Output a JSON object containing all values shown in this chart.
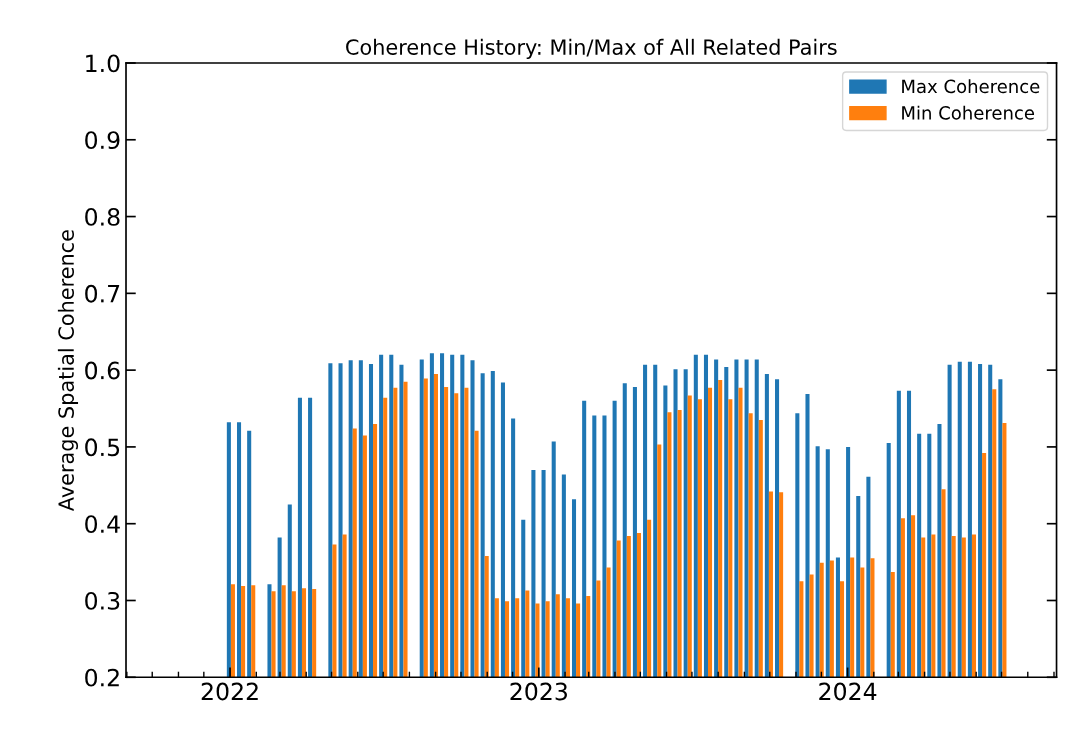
{
  "chart_data": {
    "type": "bar",
    "title": "Coherence History: Min/Max of All Related Pairs",
    "ylabel": "Average Spatial Coherence",
    "x": [
      "2022-01-02",
      "2022-01-14",
      "2022-01-26",
      "2022-02-19",
      "2022-03-03",
      "2022-03-15",
      "2022-03-27",
      "2022-04-08",
      "2022-05-02",
      "2022-05-14",
      "2022-05-26",
      "2022-06-07",
      "2022-06-19",
      "2022-07-01",
      "2022-07-13",
      "2022-07-25",
      "2022-08-18",
      "2022-08-30",
      "2022-09-11",
      "2022-09-23",
      "2022-10-05",
      "2022-10-17",
      "2022-10-29",
      "2022-11-10",
      "2022-11-22",
      "2022-12-04",
      "2022-12-16",
      "2022-12-28",
      "2023-01-09",
      "2023-01-21",
      "2023-02-02",
      "2023-02-14",
      "2023-02-26",
      "2023-03-10",
      "2023-03-22",
      "2023-04-03",
      "2023-04-15",
      "2023-04-27",
      "2023-05-09",
      "2023-05-21",
      "2023-06-02",
      "2023-06-14",
      "2023-06-26",
      "2023-07-08",
      "2023-07-20",
      "2023-08-01",
      "2023-08-13",
      "2023-08-25",
      "2023-09-06",
      "2023-09-18",
      "2023-09-30",
      "2023-10-12",
      "2023-11-05",
      "2023-11-17",
      "2023-11-29",
      "2023-12-11",
      "2023-12-23",
      "2024-01-04",
      "2024-01-16",
      "2024-01-28",
      "2024-02-21",
      "2024-03-04",
      "2024-03-16",
      "2024-03-28",
      "2024-04-09",
      "2024-04-21",
      "2024-05-03",
      "2024-05-15",
      "2024-05-27",
      "2024-06-08",
      "2024-06-20",
      "2024-07-02"
    ],
    "series": [
      {
        "name": "Max Coherence",
        "color": "#1f77b4",
        "values": [
          0.532,
          0.532,
          0.521,
          0.321,
          0.382,
          0.425,
          0.564,
          0.564,
          0.609,
          0.609,
          0.613,
          0.613,
          0.608,
          0.62,
          0.62,
          0.607,
          0.614,
          0.622,
          0.622,
          0.62,
          0.62,
          0.613,
          0.596,
          0.599,
          0.584,
          0.537,
          0.405,
          0.47,
          0.47,
          0.507,
          0.464,
          0.432,
          0.56,
          0.541,
          0.541,
          0.56,
          0.583,
          0.578,
          0.607,
          0.607,
          0.58,
          0.601,
          0.601,
          0.62,
          0.62,
          0.614,
          0.604,
          0.614,
          0.614,
          0.614,
          0.595,
          0.588,
          0.544,
          0.569,
          0.501,
          0.497,
          0.356,
          0.5,
          0.436,
          0.461,
          0.505,
          0.573,
          0.573,
          0.517,
          0.517,
          0.53,
          0.607,
          0.611,
          0.611,
          0.608,
          0.607,
          0.588
        ]
      },
      {
        "name": "Min Coherence",
        "color": "#ff7f0e",
        "values": [
          0.321,
          0.319,
          0.32,
          0.312,
          0.32,
          0.312,
          0.316,
          0.315,
          0.373,
          0.386,
          0.524,
          0.515,
          0.53,
          0.564,
          0.577,
          0.585,
          0.589,
          0.595,
          0.578,
          0.57,
          0.577,
          0.521,
          0.358,
          0.303,
          0.299,
          0.303,
          0.313,
          0.296,
          0.299,
          0.308,
          0.303,
          0.296,
          0.306,
          0.326,
          0.343,
          0.378,
          0.384,
          0.388,
          0.405,
          0.503,
          0.545,
          0.548,
          0.567,
          0.562,
          0.577,
          0.587,
          0.562,
          0.577,
          0.544,
          0.535,
          0.442,
          0.441,
          0.325,
          0.334,
          0.349,
          0.352,
          0.325,
          0.356,
          0.343,
          0.355,
          0.337,
          0.407,
          0.411,
          0.382,
          0.386,
          0.445,
          0.384,
          0.382,
          0.386,
          0.492,
          0.575,
          0.531
        ]
      }
    ],
    "xlim": [
      "2021-08-31",
      "2024-09-04"
    ],
    "xticks": [
      {
        "value": "2022-01-01",
        "label": "2022"
      },
      {
        "value": "2023-01-01",
        "label": "2023"
      },
      {
        "value": "2024-01-01",
        "label": "2024"
      }
    ],
    "ylim": [
      0.2,
      1.0
    ],
    "yticks": [
      0.2,
      0.3,
      0.4,
      0.5,
      0.6,
      0.7,
      0.8,
      0.9,
      {
        "value": 1.0,
        "label": "1.0"
      }
    ],
    "legend": "top right"
  }
}
